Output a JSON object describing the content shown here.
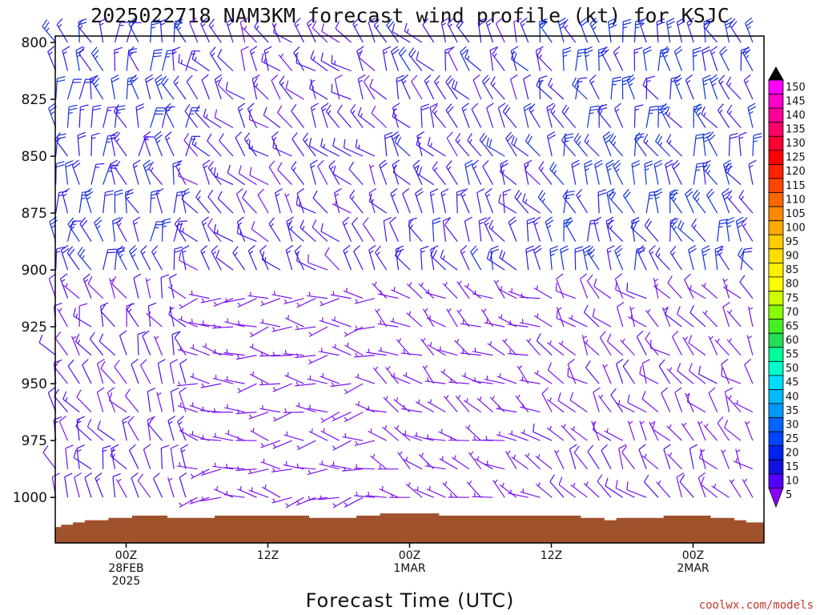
{
  "chart_data": {
    "type": "wind-barb-time-height",
    "title": "2025022718 NAM3KM forecast wind profile (kt) for KSJC",
    "xlabel": "Forecast Time (UTC)",
    "ylabel": "",
    "credit": "coolwx.com/models",
    "y_axis": {
      "ticks": [
        800,
        825,
        850,
        875,
        900,
        925,
        950,
        975,
        1000
      ],
      "range": [
        800,
        1020
      ],
      "reversed": true
    },
    "x_axis": {
      "range_hours": [
        18,
        78
      ],
      "ticks": [
        {
          "hour": 24,
          "line1": "00Z",
          "line2": "28FEB",
          "line3": "2025"
        },
        {
          "hour": 36,
          "line1": "12Z",
          "line2": "",
          "line3": ""
        },
        {
          "hour": 48,
          "line1": "00Z",
          "line2": "1MAR",
          "line3": ""
        },
        {
          "hour": 60,
          "line1": "12Z",
          "line2": "",
          "line3": ""
        },
        {
          "hour": 72,
          "line1": "00Z",
          "line2": "2MAR",
          "line3": ""
        }
      ]
    },
    "colorbar": {
      "labels": [
        "150",
        "145",
        "140",
        "135",
        "130",
        "125",
        "120",
        "115",
        "110",
        "105",
        "100",
        "95",
        "90",
        "85",
        "80",
        "75",
        "70",
        "65",
        "60",
        "55",
        "50",
        "45",
        "40",
        "35",
        "30",
        "25",
        "20",
        "15",
        "10",
        "5"
      ],
      "colors": [
        "#ff00ff",
        "#ff00cc",
        "#ff0099",
        "#ff0066",
        "#ff0033",
        "#ff0000",
        "#ff2200",
        "#ff4400",
        "#ff6600",
        "#ff8800",
        "#ffaa00",
        "#ffcc00",
        "#ffdd00",
        "#ffee00",
        "#ffff00",
        "#ccff00",
        "#88ff00",
        "#44ee22",
        "#22dd55",
        "#00ff99",
        "#00ffcc",
        "#00ddff",
        "#00bbff",
        "#0099ff",
        "#0066ff",
        "#0044ff",
        "#0022ee",
        "#1111dd",
        "#5500ff",
        "#8800ff"
      ]
    },
    "terrain": {
      "color": "#a0522d",
      "surface_pressure_by_hour": [
        [
          18,
          1013
        ],
        [
          19,
          1012
        ],
        [
          20,
          1011
        ],
        [
          21,
          1010
        ],
        [
          22,
          1010
        ],
        [
          23,
          1009
        ],
        [
          24,
          1009
        ],
        [
          25,
          1008
        ],
        [
          26,
          1008
        ],
        [
          27,
          1008
        ],
        [
          28,
          1009
        ],
        [
          29,
          1009
        ],
        [
          30,
          1009
        ],
        [
          31,
          1009
        ],
        [
          32,
          1008
        ],
        [
          33,
          1008
        ],
        [
          34,
          1008
        ],
        [
          35,
          1008
        ],
        [
          36,
          1008
        ],
        [
          37,
          1008
        ],
        [
          38,
          1008
        ],
        [
          39,
          1008
        ],
        [
          40,
          1009
        ],
        [
          41,
          1009
        ],
        [
          42,
          1009
        ],
        [
          43,
          1009
        ],
        [
          44,
          1008
        ],
        [
          45,
          1008
        ],
        [
          46,
          1007
        ],
        [
          47,
          1007
        ],
        [
          48,
          1007
        ],
        [
          49,
          1007
        ],
        [
          50,
          1007
        ],
        [
          51,
          1008
        ],
        [
          52,
          1008
        ],
        [
          53,
          1008
        ],
        [
          54,
          1008
        ],
        [
          55,
          1008
        ],
        [
          56,
          1008
        ],
        [
          57,
          1008
        ],
        [
          58,
          1008
        ],
        [
          59,
          1008
        ],
        [
          60,
          1008
        ],
        [
          61,
          1008
        ],
        [
          62,
          1008
        ],
        [
          63,
          1009
        ],
        [
          64,
          1009
        ],
        [
          65,
          1010
        ],
        [
          66,
          1009
        ],
        [
          67,
          1009
        ],
        [
          68,
          1009
        ],
        [
          69,
          1009
        ],
        [
          70,
          1008
        ],
        [
          71,
          1008
        ],
        [
          72,
          1008
        ],
        [
          73,
          1008
        ],
        [
          74,
          1009
        ],
        [
          75,
          1009
        ],
        [
          76,
          1010
        ],
        [
          77,
          1011
        ],
        [
          78,
          1011
        ]
      ]
    },
    "wind_field": {
      "columns_hours_step": 1,
      "pressure_levels": [
        800,
        812.5,
        825,
        837.5,
        850,
        862.5,
        875,
        887.5,
        900,
        912.5,
        925,
        937.5,
        950,
        962.5,
        975,
        987.5,
        1000
      ],
      "description_by_regime": [
        {
          "hours": [
            18,
            30
          ],
          "levels": [
            800,
            900
          ],
          "dir_deg": 350,
          "speed_kt": 20
        },
        {
          "hours": [
            18,
            30
          ],
          "levels": [
            900,
            1000
          ],
          "dir_deg": 330,
          "speed_kt": 10
        },
        {
          "hours": [
            30,
            46
          ],
          "levels": [
            800,
            900
          ],
          "dir_deg": 320,
          "speed_kt": 12
        },
        {
          "hours": [
            30,
            46
          ],
          "levels": [
            900,
            1000
          ],
          "dir_deg": 270,
          "speed_kt": 5
        },
        {
          "hours": [
            46,
            60
          ],
          "levels": [
            800,
            900
          ],
          "dir_deg": 330,
          "speed_kt": 15
        },
        {
          "hours": [
            46,
            60
          ],
          "levels": [
            900,
            1000
          ],
          "dir_deg": 300,
          "speed_kt": 5
        },
        {
          "hours": [
            60,
            78
          ],
          "levels": [
            800,
            900
          ],
          "dir_deg": 340,
          "speed_kt": 20
        },
        {
          "hours": [
            60,
            78
          ],
          "levels": [
            900,
            1000
          ],
          "dir_deg": 320,
          "speed_kt": 8
        }
      ]
    }
  }
}
